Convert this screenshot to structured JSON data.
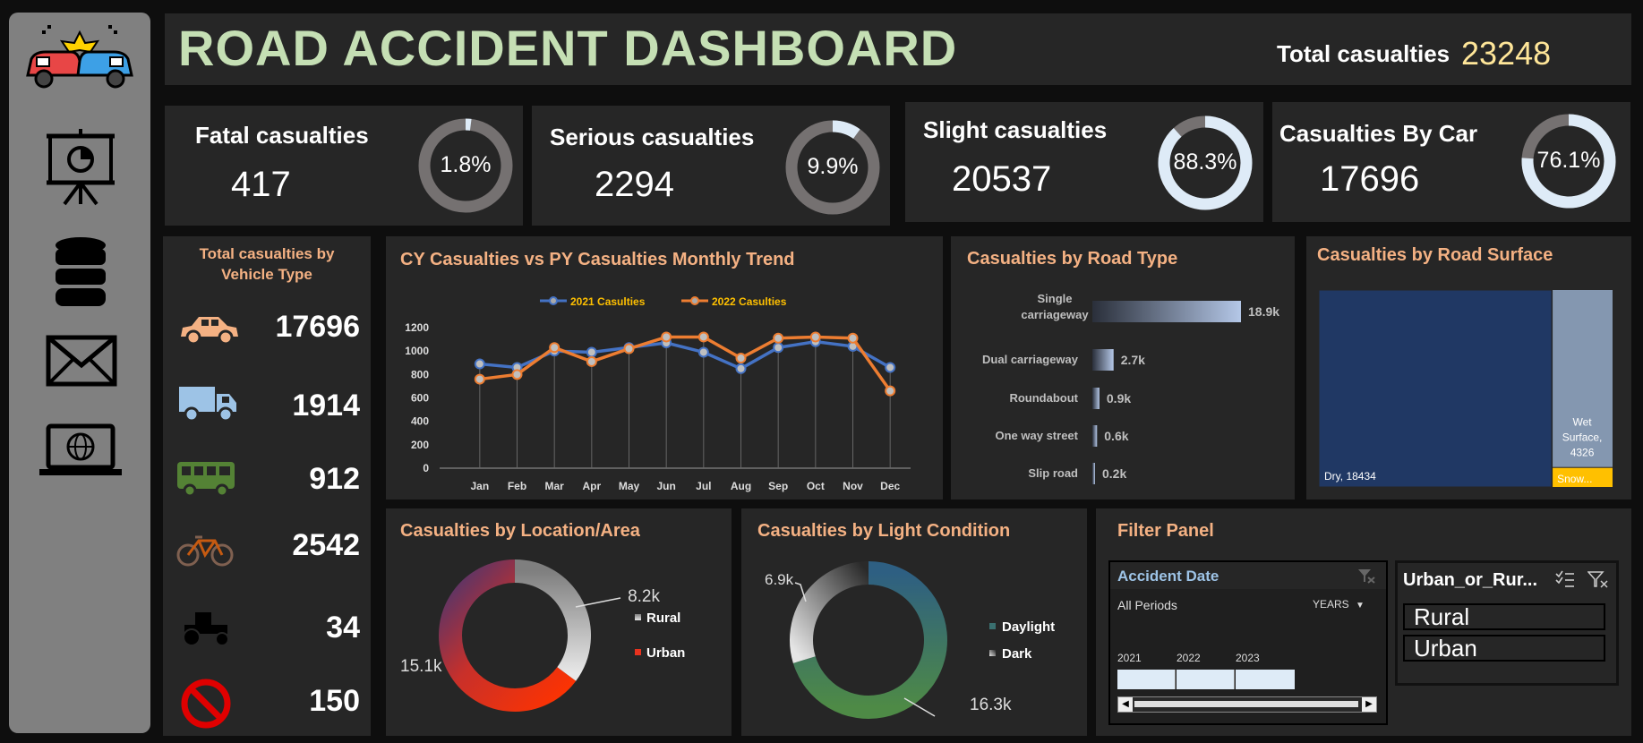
{
  "header": {
    "title": "ROAD ACCIDENT DASHBOARD",
    "total_label": "Total casualties",
    "total_value": "23248"
  },
  "sidebar": {
    "icons": [
      "car-crash-icon",
      "presentation-icon",
      "database-icon",
      "mail-icon",
      "laptop-globe-icon"
    ]
  },
  "kpis": [
    {
      "label": "Fatal casualties",
      "value": "417",
      "pct_label": "1.8%",
      "pct": 0.018
    },
    {
      "label": "Serious casualties",
      "value": "2294",
      "pct_label": "9.9%",
      "pct": 0.099
    },
    {
      "label": "Slight casualties",
      "value": "20537",
      "pct_label": "88.3%",
      "pct": 0.883
    },
    {
      "label": "Casualties By Car",
      "value": "17696",
      "pct_label": "76.1%",
      "pct": 0.761
    }
  ],
  "vehicle": {
    "title_line1": "Total casualties by",
    "title_line2": "Vehicle Type",
    "items": [
      {
        "icon": "car-icon",
        "value": "17696",
        "color": "#f4b183"
      },
      {
        "icon": "truck-icon",
        "value": "1914",
        "color": "#9dc3e6"
      },
      {
        "icon": "bus-icon",
        "value": "912",
        "color": "#548235"
      },
      {
        "icon": "bicycle-icon",
        "value": "2542",
        "color": "#c55a11"
      },
      {
        "icon": "tractor-icon",
        "value": "34",
        "color": "#111111"
      },
      {
        "icon": "no-entry-icon",
        "value": "150",
        "color": "#e00000"
      }
    ]
  },
  "chart_data": [
    {
      "type": "line",
      "title": "CY Casualties vs PY Casualties Monthly Trend",
      "categories": [
        "Jan",
        "Feb",
        "Mar",
        "Apr",
        "May",
        "Jun",
        "Jul",
        "Aug",
        "Sep",
        "Oct",
        "Nov",
        "Dec"
      ],
      "series": [
        {
          "name": "2021 Casulties",
          "color": "#4472c4",
          "values": [
            890,
            860,
            1000,
            990,
            1030,
            1070,
            990,
            850,
            1030,
            1080,
            1040,
            860
          ]
        },
        {
          "name": "2022 Casulties",
          "color": "#ed7d31",
          "values": [
            760,
            800,
            1030,
            910,
            1020,
            1120,
            1120,
            940,
            1110,
            1120,
            1110,
            660
          ]
        }
      ],
      "yticks": [
        "0",
        "200",
        "400",
        "600",
        "800",
        "1000",
        "1200"
      ],
      "ylim": [
        0,
        1200
      ],
      "legend": "top"
    },
    {
      "type": "bar",
      "title": "Casualties by Road Type",
      "categories": [
        "Single carriageway",
        "Dual carriageway",
        "Roundabout",
        "One way street",
        "Slip road"
      ],
      "values": [
        18900,
        2700,
        900,
        600,
        200
      ],
      "labels": [
        "18.9k",
        "2.7k",
        "0.9k",
        "0.6k",
        "0.2k"
      ],
      "orientation": "horizontal"
    },
    {
      "type": "treemap",
      "title": "Casualties by Road Surface",
      "items": [
        {
          "name": "Dry",
          "value": 18434,
          "label": "Dry, 18434",
          "color": "#203864"
        },
        {
          "name": "Wet Surface",
          "value": 4326,
          "label_lines": [
            "Wet",
            "Surface,",
            "4326"
          ],
          "color": "#8497b0"
        },
        {
          "name": "Snow",
          "value": 488,
          "label": "Snow...",
          "color": "#ffc000"
        }
      ]
    },
    {
      "type": "pie",
      "title": "Casualties by Location/Area",
      "slices": [
        {
          "name": "Rural",
          "value": 8200,
          "label": "8.2k"
        },
        {
          "name": "Urban",
          "value": 15100,
          "label": "15.1k"
        }
      ]
    },
    {
      "type": "pie",
      "title": "Casualties by Light Condition",
      "slices": [
        {
          "name": "Daylight",
          "value": 16300,
          "label": "16.3k"
        },
        {
          "name": "Dark",
          "value": 6900,
          "label": "6.9k"
        }
      ]
    }
  ],
  "filter": {
    "title": "Filter Panel",
    "date_slicer": {
      "title": "Accident Date",
      "periods": "All Periods",
      "unit": "YEARS",
      "years": [
        "2021",
        "2022",
        "2023"
      ]
    },
    "area_slicer": {
      "title": "Urban_or_Rur...",
      "options": [
        "Rural",
        "Urban"
      ]
    }
  },
  "colors": {
    "panel": "#262626",
    "accent_title": "#f4b183",
    "header_title": "#c5dfb4",
    "total_value": "#ffe699"
  }
}
